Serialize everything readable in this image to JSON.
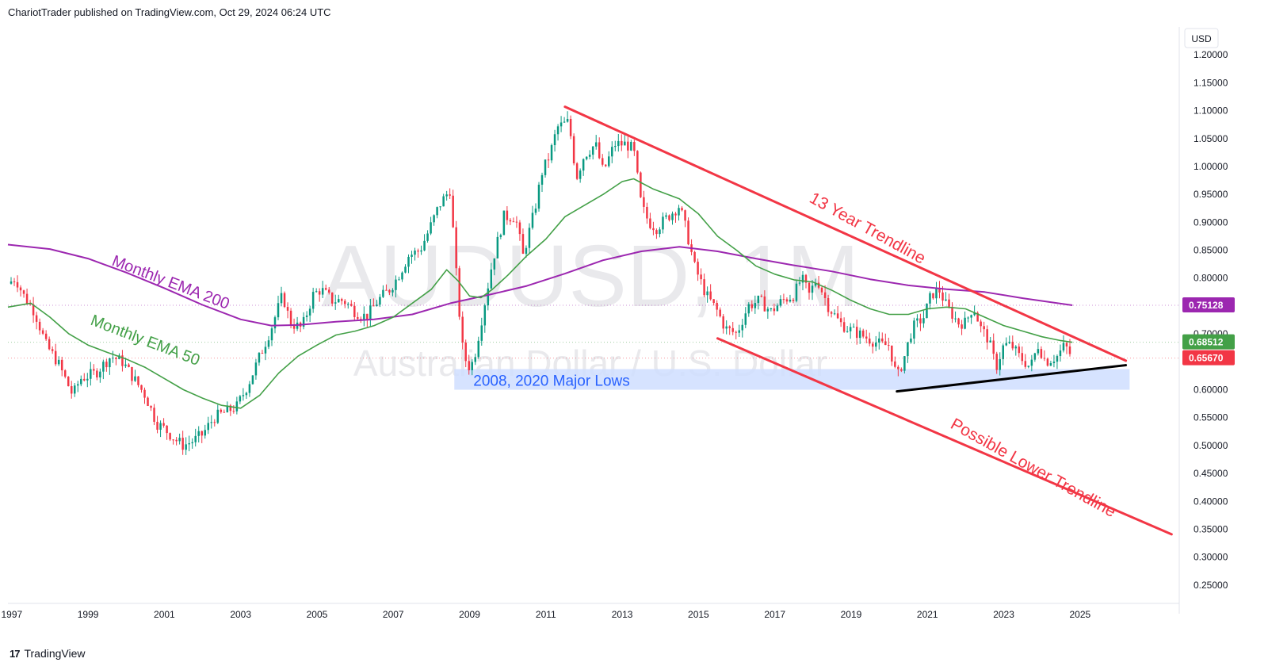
{
  "header": {
    "publisher_line": "ChariotTrader published on TradingView.com, Oct 29, 2024 06:24 UTC"
  },
  "footer": {
    "brand": "TradingView",
    "logo_glyph": "17"
  },
  "colors": {
    "bull": "#089981",
    "bear": "#f23645",
    "ema50": "#43a047",
    "ema200": "#9c27b0",
    "trendline": "#f23645",
    "support": "#000000",
    "zone": "#cfdeff",
    "zone_text": "#2962ff"
  },
  "chart_data": {
    "type": "candlestick",
    "symbol_watermark": "AUDUSD, 1M",
    "watermark_subtitle": "Australian Dollar / U.S. Dollar",
    "currency": "USD",
    "ylim": [
      0.22,
      1.25
    ],
    "xlim": [
      1996.9,
      2027.6
    ],
    "y_ticks": [
      "1.20000",
      "1.15000",
      "1.10000",
      "1.05000",
      "1.00000",
      "0.95000",
      "0.90000",
      "0.85000",
      "0.80000",
      "0.75000",
      "0.70000",
      "0.65000",
      "0.60000",
      "0.55000",
      "0.50000",
      "0.45000",
      "0.40000",
      "0.35000",
      "0.30000",
      "0.25000"
    ],
    "x_ticks": [
      "1997",
      "1999",
      "2001",
      "2003",
      "2005",
      "2007",
      "2009",
      "2011",
      "2013",
      "2015",
      "2017",
      "2019",
      "2021",
      "2023",
      "2025"
    ],
    "price_badges": [
      {
        "value": "0.75128",
        "color": "#9c27b0"
      },
      {
        "value": "0.68512",
        "color": "#43a047"
      },
      {
        "value": "0.65670",
        "color": "#f23645"
      }
    ],
    "close_path": [
      [
        1996.9,
        0.79
      ],
      [
        1997.1,
        0.8
      ],
      [
        1997.3,
        0.77
      ],
      [
        1997.6,
        0.74
      ],
      [
        1997.9,
        0.68
      ],
      [
        1998.2,
        0.65
      ],
      [
        1998.6,
        0.59
      ],
      [
        1998.8,
        0.62
      ],
      [
        1999.2,
        0.63
      ],
      [
        1999.6,
        0.66
      ],
      [
        1999.9,
        0.65
      ],
      [
        2000.2,
        0.62
      ],
      [
        2000.5,
        0.59
      ],
      [
        2000.8,
        0.54
      ],
      [
        2001.0,
        0.53
      ],
      [
        2001.3,
        0.51
      ],
      [
        2001.5,
        0.5
      ],
      [
        2001.8,
        0.51
      ],
      [
        2002.0,
        0.52
      ],
      [
        2002.3,
        0.55
      ],
      [
        2002.6,
        0.56
      ],
      [
        2002.9,
        0.57
      ],
      [
        2003.2,
        0.61
      ],
      [
        2003.5,
        0.66
      ],
      [
        2003.8,
        0.71
      ],
      [
        2004.1,
        0.77
      ],
      [
        2004.3,
        0.72
      ],
      [
        2004.6,
        0.71
      ],
      [
        2004.9,
        0.77
      ],
      [
        2005.1,
        0.78
      ],
      [
        2005.4,
        0.76
      ],
      [
        2005.7,
        0.76
      ],
      [
        2006.0,
        0.74
      ],
      [
        2006.3,
        0.73
      ],
      [
        2006.6,
        0.76
      ],
      [
        2006.9,
        0.78
      ],
      [
        2007.1,
        0.8
      ],
      [
        2007.4,
        0.84
      ],
      [
        2007.7,
        0.85
      ],
      [
        2007.9,
        0.88
      ],
      [
        2008.2,
        0.93
      ],
      [
        2008.5,
        0.96
      ],
      [
        2008.6,
        0.85
      ],
      [
        2008.8,
        0.68
      ],
      [
        2008.95,
        0.64
      ],
      [
        2009.1,
        0.65
      ],
      [
        2009.3,
        0.72
      ],
      [
        2009.6,
        0.83
      ],
      [
        2009.9,
        0.91
      ],
      [
        2010.2,
        0.91
      ],
      [
        2010.4,
        0.84
      ],
      [
        2010.7,
        0.92
      ],
      [
        2010.9,
        0.99
      ],
      [
        2011.1,
        1.02
      ],
      [
        2011.3,
        1.07
      ],
      [
        2011.6,
        1.08
      ],
      [
        2011.8,
        0.98
      ],
      [
        2012.0,
        1.02
      ],
      [
        2012.3,
        1.04
      ],
      [
        2012.5,
        0.99
      ],
      [
        2012.8,
        1.04
      ],
      [
        2013.1,
        1.04
      ],
      [
        2013.3,
        1.03
      ],
      [
        2013.5,
        0.93
      ],
      [
        2013.7,
        0.9
      ],
      [
        2013.9,
        0.89
      ],
      [
        2014.2,
        0.91
      ],
      [
        2014.5,
        0.93
      ],
      [
        2014.7,
        0.88
      ],
      [
        2014.9,
        0.82
      ],
      [
        2015.2,
        0.77
      ],
      [
        2015.5,
        0.74
      ],
      [
        2015.7,
        0.71
      ],
      [
        2016.0,
        0.7
      ],
      [
        2016.3,
        0.75
      ],
      [
        2016.6,
        0.76
      ],
      [
        2016.9,
        0.74
      ],
      [
        2017.2,
        0.76
      ],
      [
        2017.5,
        0.77
      ],
      [
        2017.7,
        0.8
      ],
      [
        2017.9,
        0.77
      ],
      [
        2018.1,
        0.8
      ],
      [
        2018.4,
        0.75
      ],
      [
        2018.7,
        0.72
      ],
      [
        2018.9,
        0.71
      ],
      [
        2019.2,
        0.7
      ],
      [
        2019.5,
        0.69
      ],
      [
        2019.8,
        0.68
      ],
      [
        2020.0,
        0.68
      ],
      [
        2020.2,
        0.62
      ],
      [
        2020.4,
        0.66
      ],
      [
        2020.6,
        0.71
      ],
      [
        2020.9,
        0.73
      ],
      [
        2021.1,
        0.77
      ],
      [
        2021.3,
        0.78
      ],
      [
        2021.5,
        0.75
      ],
      [
        2021.8,
        0.72
      ],
      [
        2022.0,
        0.72
      ],
      [
        2022.2,
        0.75
      ],
      [
        2022.4,
        0.71
      ],
      [
        2022.6,
        0.69
      ],
      [
        2022.8,
        0.64
      ],
      [
        2023.0,
        0.68
      ],
      [
        2023.2,
        0.68
      ],
      [
        2023.4,
        0.66
      ],
      [
        2023.7,
        0.64
      ],
      [
        2023.9,
        0.68
      ],
      [
        2024.1,
        0.65
      ],
      [
        2024.4,
        0.66
      ],
      [
        2024.6,
        0.68
      ],
      [
        2024.8,
        0.657
      ]
    ],
    "ema50_path": [
      [
        1996.9,
        0.748
      ],
      [
        1997.5,
        0.755
      ],
      [
        1998.0,
        0.73
      ],
      [
        1998.5,
        0.7
      ],
      [
        1999.0,
        0.68
      ],
      [
        1999.5,
        0.667
      ],
      [
        2000.0,
        0.655
      ],
      [
        2000.5,
        0.64
      ],
      [
        2001.0,
        0.62
      ],
      [
        2001.5,
        0.6
      ],
      [
        2002.0,
        0.585
      ],
      [
        2002.5,
        0.572
      ],
      [
        2003.0,
        0.567
      ],
      [
        2003.5,
        0.59
      ],
      [
        2004.0,
        0.63
      ],
      [
        2004.5,
        0.66
      ],
      [
        2005.0,
        0.68
      ],
      [
        2005.5,
        0.698
      ],
      [
        2006.0,
        0.705
      ],
      [
        2006.5,
        0.715
      ],
      [
        2007.0,
        0.73
      ],
      [
        2007.5,
        0.755
      ],
      [
        2008.0,
        0.78
      ],
      [
        2008.4,
        0.815
      ],
      [
        2008.7,
        0.795
      ],
      [
        2009.0,
        0.768
      ],
      [
        2009.3,
        0.765
      ],
      [
        2009.6,
        0.78
      ],
      [
        2010.0,
        0.805
      ],
      [
        2010.5,
        0.84
      ],
      [
        2011.0,
        0.87
      ],
      [
        2011.5,
        0.91
      ],
      [
        2012.0,
        0.93
      ],
      [
        2012.5,
        0.95
      ],
      [
        2013.0,
        0.973
      ],
      [
        2013.3,
        0.978
      ],
      [
        2013.8,
        0.96
      ],
      [
        2014.5,
        0.942
      ],
      [
        2015.0,
        0.915
      ],
      [
        2015.5,
        0.875
      ],
      [
        2016.0,
        0.85
      ],
      [
        2016.5,
        0.822
      ],
      [
        2017.0,
        0.807
      ],
      [
        2017.5,
        0.797
      ],
      [
        2018.0,
        0.793
      ],
      [
        2018.5,
        0.778
      ],
      [
        2019.0,
        0.76
      ],
      [
        2019.5,
        0.745
      ],
      [
        2020.0,
        0.735
      ],
      [
        2020.5,
        0.735
      ],
      [
        2021.0,
        0.745
      ],
      [
        2021.5,
        0.748
      ],
      [
        2022.0,
        0.745
      ],
      [
        2022.5,
        0.73
      ],
      [
        2023.0,
        0.715
      ],
      [
        2023.5,
        0.705
      ],
      [
        2024.0,
        0.695
      ],
      [
        2024.5,
        0.688
      ],
      [
        2024.8,
        0.685
      ]
    ],
    "ema200_path": [
      [
        1996.9,
        0.86
      ],
      [
        1998.0,
        0.852
      ],
      [
        1999.0,
        0.835
      ],
      [
        2000.0,
        0.81
      ],
      [
        2001.0,
        0.782
      ],
      [
        2002.0,
        0.752
      ],
      [
        2003.0,
        0.726
      ],
      [
        2003.8,
        0.715
      ],
      [
        2004.5,
        0.716
      ],
      [
        2005.5,
        0.722
      ],
      [
        2006.5,
        0.726
      ],
      [
        2007.5,
        0.735
      ],
      [
        2008.5,
        0.755
      ],
      [
        2009.5,
        0.77
      ],
      [
        2010.5,
        0.786
      ],
      [
        2011.5,
        0.808
      ],
      [
        2012.5,
        0.832
      ],
      [
        2013.5,
        0.848
      ],
      [
        2014.5,
        0.856
      ],
      [
        2015.5,
        0.848
      ],
      [
        2016.5,
        0.835
      ],
      [
        2017.5,
        0.823
      ],
      [
        2018.5,
        0.812
      ],
      [
        2019.5,
        0.798
      ],
      [
        2020.5,
        0.787
      ],
      [
        2021.5,
        0.78
      ],
      [
        2022.5,
        0.775
      ],
      [
        2023.5,
        0.764
      ],
      [
        2024.8,
        0.7513
      ]
    ],
    "drawings": {
      "upper_trendline": {
        "label": "13 Year Trendline",
        "from": [
          2011.5,
          1.107
        ],
        "to": [
          2026.2,
          0.652
        ]
      },
      "lower_trendline": {
        "label": "Possible Lower Trendline",
        "from": [
          2015.5,
          0.692
        ],
        "to": [
          2027.4,
          0.341
        ]
      },
      "support_line": {
        "from": [
          2020.2,
          0.597
        ],
        "to": [
          2026.2,
          0.644
        ]
      },
      "zone": {
        "label": "2008, 2020 Major Lows",
        "x": [
          2008.6,
          2026.3
        ],
        "y": [
          0.6,
          0.637
        ]
      },
      "ema200_label": "Monthly EMA 200",
      "ema50_label": "Monthly EMA 50"
    },
    "grid": false,
    "legend": "none"
  }
}
